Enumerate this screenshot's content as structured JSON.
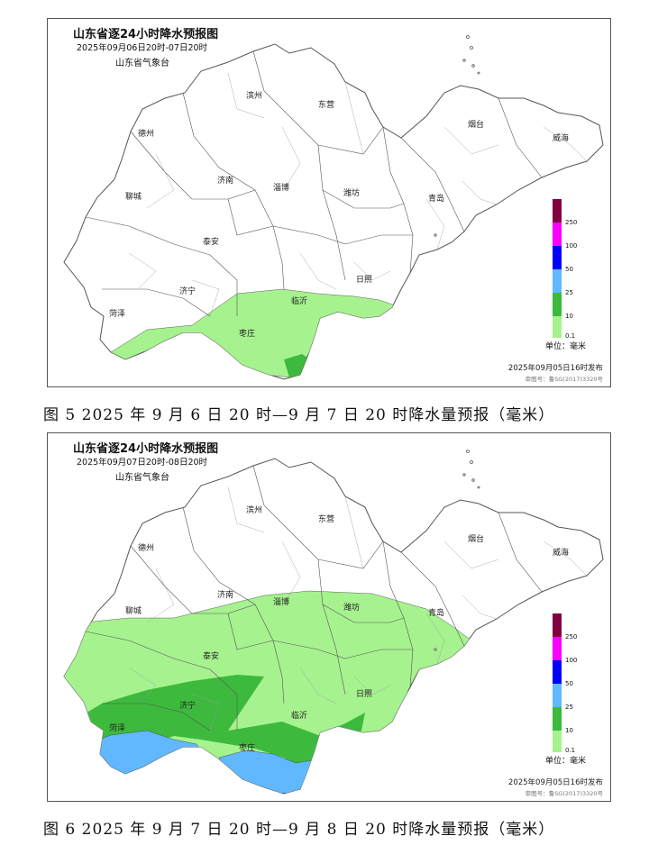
{
  "colors": {
    "c0": "#a6f28f",
    "c1": "#3dba3d",
    "c2": "#61b8ff",
    "c3": "#0000fe",
    "c4": "#fa00fa",
    "c5": "#800040",
    "border": "#555555",
    "bg": "#ffffff"
  },
  "icons": {
    "map": "shandong-province-outline",
    "legend": "precipitation-color-scale"
  },
  "map1": {
    "title": "山东省逐24小时降水预报图",
    "date_range": "2025年09月06日20时-07日20时",
    "agency": "山东省气象台",
    "issued": "2025年09月05日16时发布",
    "review_no": "审图号：鲁SG(2017)3320号",
    "legend_unit": "单位：毫米",
    "legend_levels": [
      "0.1",
      "10",
      "25",
      "50",
      "100",
      "250"
    ],
    "cities": [
      "德州",
      "滨州",
      "东营",
      "烟台",
      "威海",
      "聊城",
      "济南",
      "淄博",
      "潍坊",
      "青岛",
      "泰安",
      "济宁",
      "日照",
      "菏泽",
      "临沂",
      "枣庄"
    ],
    "rain_zones": [
      "0.1–10 mm: southern Shandong (Zaozhuang, Linyi, southern Jining/Heze border, south Rizhao coast)",
      "10–25 mm: southern tip of Linyi"
    ]
  },
  "map2": {
    "title": "山东省逐24小时降水预报图",
    "date_range": "2025年09月07日20时-08日20时",
    "agency": "山东省气象台",
    "issued": "2025年09月05日16时发布",
    "review_no": "审图号：鲁SG(2017)3320号",
    "legend_unit": "单位：毫米",
    "legend_levels": [
      "0.1",
      "10",
      "25",
      "50",
      "100",
      "250"
    ],
    "cities": [
      "德州",
      "滨州",
      "东营",
      "烟台",
      "威海",
      "聊城",
      "济南",
      "淄博",
      "潍坊",
      "青岛",
      "泰安",
      "济宁",
      "日照",
      "菏泽",
      "临沂",
      "枣庄"
    ],
    "rain_zones": [
      "0.1–10 mm: central and southern Shandong",
      "10–25 mm: Jining, Heze, Zaozhuang, southern Linyi",
      "25–50 mm: southern Heze, Zaozhuang, southern Linyi"
    ]
  },
  "captions": {
    "fig5": "图 5 2025 年 9 月 6 日 20 时—9 月 7 日 20 时降水量预报（毫米）",
    "fig6": "图 6 2025 年 9 月 7 日 20 时—9 月 8 日 20 时降水量预报（毫米）"
  }
}
